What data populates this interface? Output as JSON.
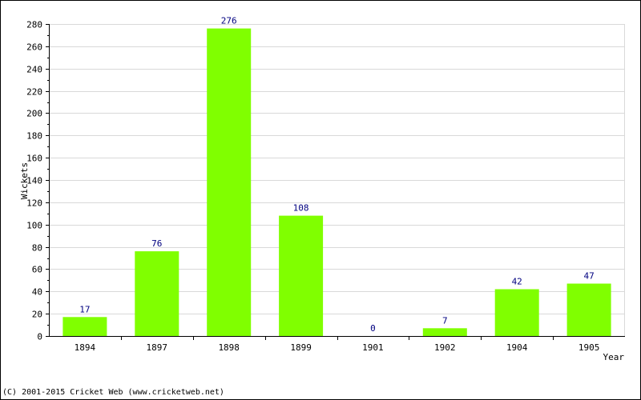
{
  "colors": {
    "bar": "#80ff00",
    "data_label": "#000080",
    "grid": "#d9d9d9",
    "axis": "#000000"
  },
  "footer": {
    "copyright": "(C) 2001-2015 Cricket Web (www.cricketweb.net)"
  },
  "chart_data": {
    "type": "bar",
    "title": "",
    "xlabel": "Year",
    "ylabel": "Wickets",
    "categories": [
      "1894",
      "1897",
      "1898",
      "1899",
      "1901",
      "1902",
      "1904",
      "1905"
    ],
    "values": [
      17,
      76,
      276,
      108,
      0,
      7,
      42,
      47
    ],
    "ylim": [
      0,
      280
    ],
    "yticks": [
      0,
      20,
      40,
      60,
      80,
      100,
      120,
      140,
      160,
      180,
      200,
      220,
      240,
      260,
      280
    ],
    "grid": true,
    "legend": "none"
  }
}
